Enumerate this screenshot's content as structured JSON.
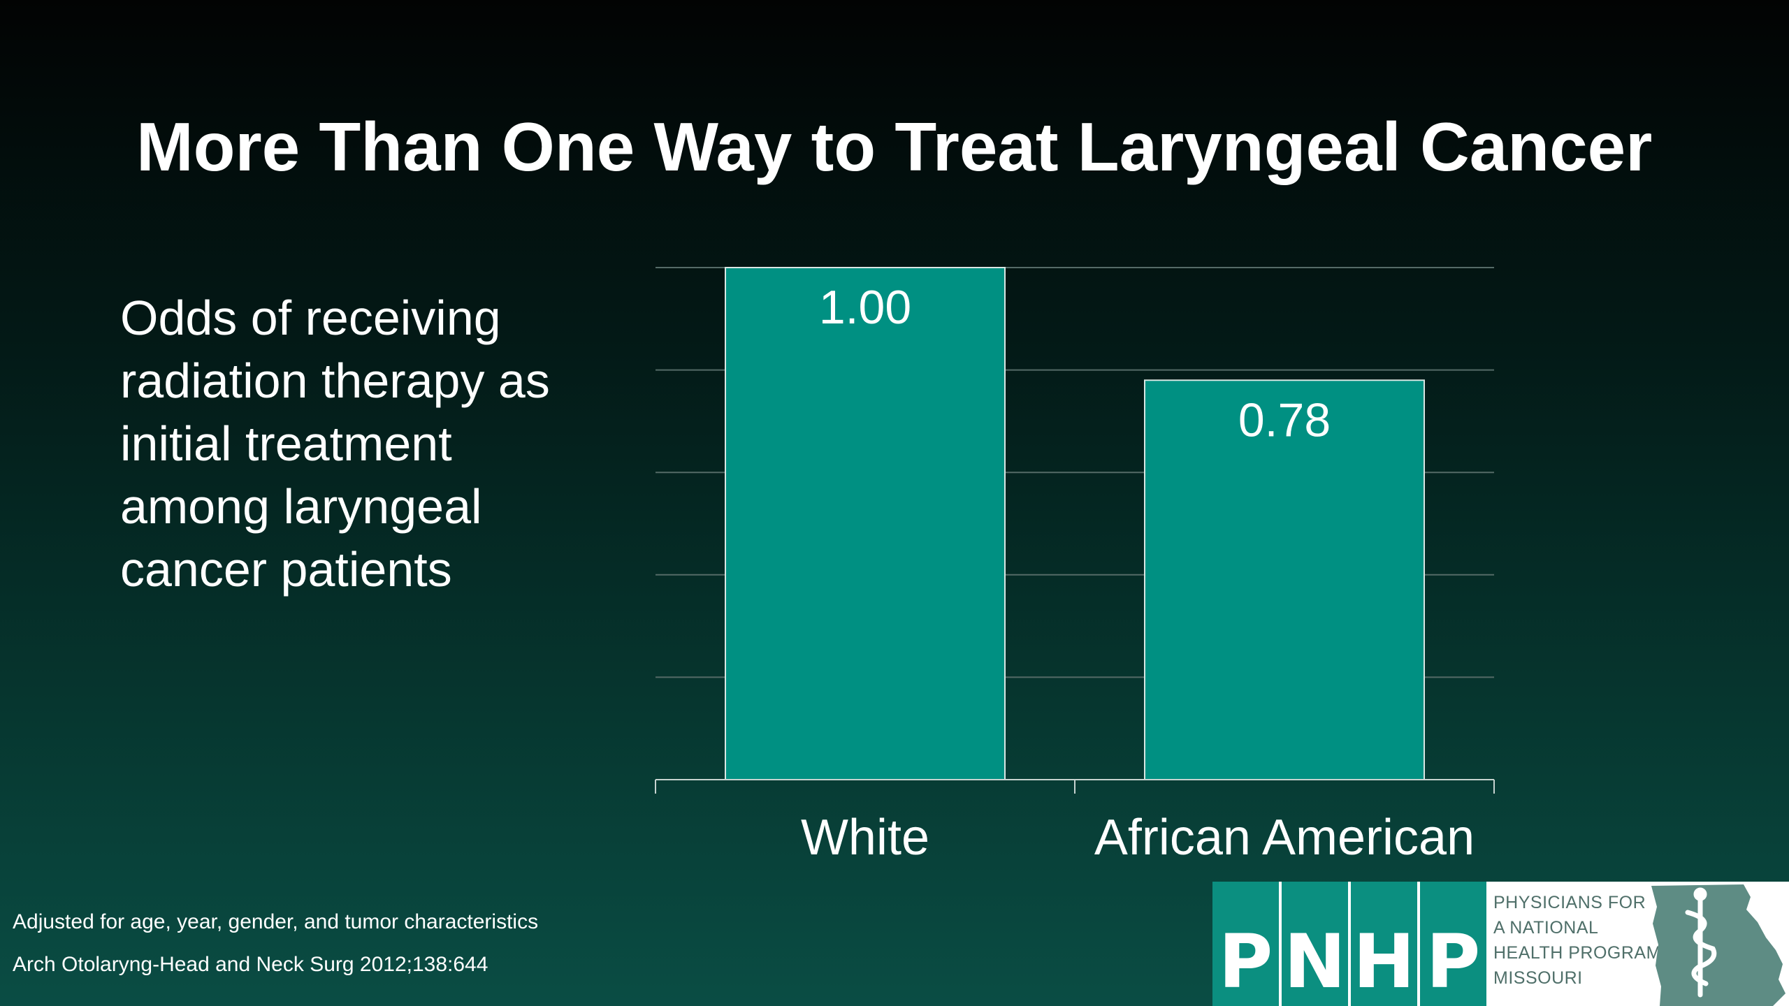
{
  "title": "More Than One Way to Treat Laryngeal Cancer",
  "description": "Odds of receiving radiation therapy as initial treatment among laryngeal cancer patients",
  "chart_data": {
    "type": "bar",
    "categories": [
      "White",
      "African American"
    ],
    "values": [
      1.0,
      0.78
    ],
    "value_labels": [
      "1.00",
      "0.78"
    ],
    "ylim": [
      0,
      1.0
    ],
    "grid": true,
    "bar_color": "#009082",
    "grid_color": "#556b67"
  },
  "footnotes": {
    "line1": "Adjusted for age, year, gender, and tumor characteristics",
    "line2": "Arch Otolaryng-Head and Neck Surg 2012;138:644"
  },
  "logo": {
    "letters": [
      "P",
      "N",
      "H",
      "P"
    ],
    "text_lines": [
      "PHYSICIANS FOR",
      "A NATIONAL",
      "HEALTH PROGRAM",
      "MISSOURI"
    ],
    "brand_color": "#0b8f80",
    "map_color": "#5e8c84"
  }
}
